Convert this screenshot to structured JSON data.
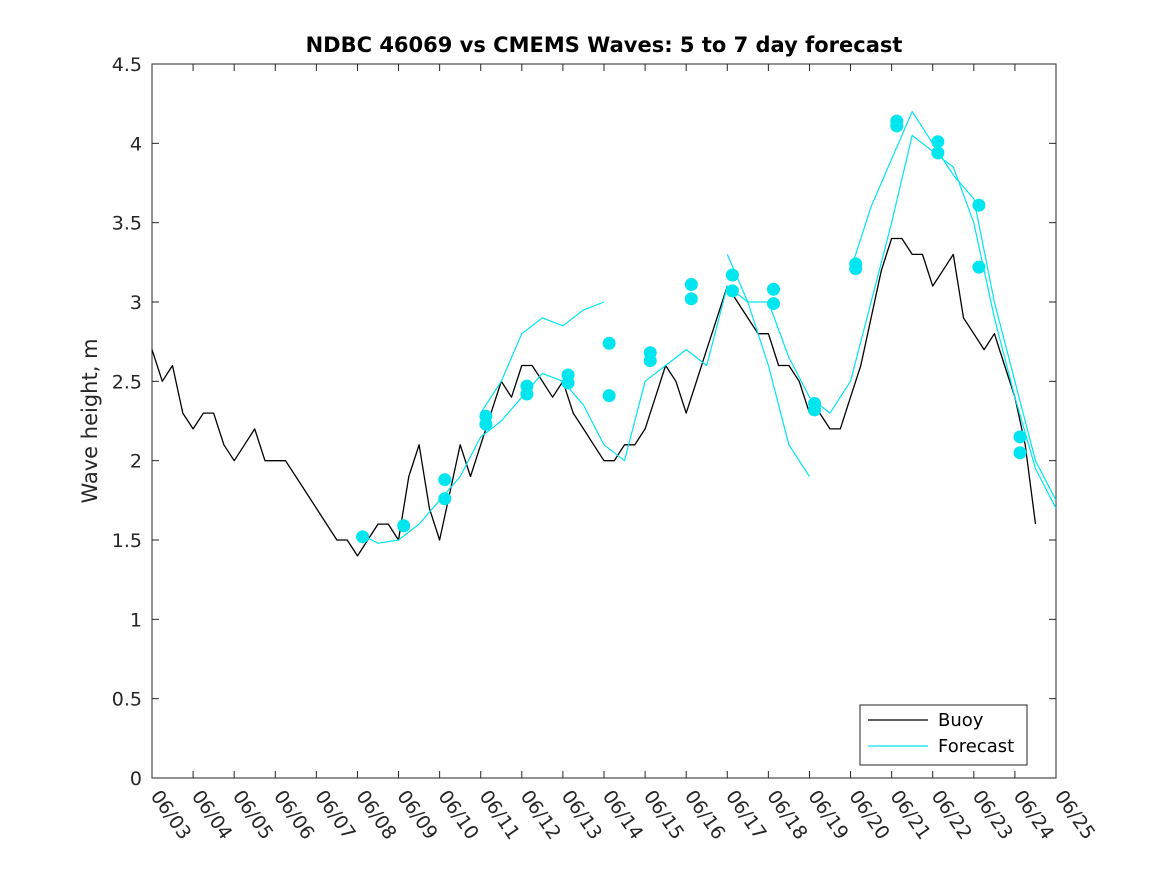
{
  "chart_data": {
    "type": "line",
    "title": "NDBC 46069 vs CMEMS Waves: 5 to 7 day forecast",
    "xlabel": "",
    "ylabel": "Wave height, m",
    "ylim": [
      0,
      4.5
    ],
    "yticks": [
      0,
      0.5,
      1,
      1.5,
      2,
      2.5,
      3,
      3.5,
      4,
      4.5
    ],
    "ytick_labels": [
      "0",
      "0.5",
      "1",
      "1.5",
      "2",
      "2.5",
      "3",
      "3.5",
      "4",
      "4.5"
    ],
    "xlim": [
      "06/03",
      "06/25"
    ],
    "xtick_labels": [
      "06/03",
      "06/04",
      "06/05",
      "06/06",
      "06/07",
      "06/08",
      "06/09",
      "06/10",
      "06/11",
      "06/12",
      "06/13",
      "06/14",
      "06/15",
      "06/16",
      "06/17",
      "06/18",
      "06/19",
      "06/20",
      "06/21",
      "06/22",
      "06/23",
      "06/24",
      "06/25"
    ],
    "grid": false,
    "legend_position": "bottom-right",
    "colors": {
      "buoy": "#000000",
      "forecast": "#00e5ee"
    },
    "series": [
      {
        "name": "Buoy",
        "color": "#000000",
        "x": [
          "06/03 00:00",
          "06/03 06:00",
          "06/03 12:00",
          "06/03 18:00",
          "06/04 00:00",
          "06/04 06:00",
          "06/04 12:00",
          "06/04 18:00",
          "06/05 00:00",
          "06/05 06:00",
          "06/05 12:00",
          "06/05 18:00",
          "06/06 00:00",
          "06/06 06:00",
          "06/06 12:00",
          "06/06 18:00",
          "06/07 00:00",
          "06/07 06:00",
          "06/07 12:00",
          "06/07 18:00",
          "06/08 00:00",
          "06/08 06:00",
          "06/08 12:00",
          "06/08 18:00",
          "06/09 00:00",
          "06/09 06:00",
          "06/09 12:00",
          "06/09 18:00",
          "06/10 00:00",
          "06/10 06:00",
          "06/10 12:00",
          "06/10 18:00",
          "06/11 00:00",
          "06/11 06:00",
          "06/11 12:00",
          "06/11 18:00",
          "06/12 00:00",
          "06/12 06:00",
          "06/12 12:00",
          "06/12 18:00",
          "06/13 00:00",
          "06/13 06:00",
          "06/13 12:00",
          "06/13 18:00",
          "06/14 00:00",
          "06/14 06:00",
          "06/14 12:00",
          "06/14 18:00",
          "06/15 00:00",
          "06/15 06:00",
          "06/15 12:00",
          "06/15 18:00",
          "06/16 00:00",
          "06/16 06:00",
          "06/16 12:00",
          "06/16 18:00",
          "06/17 00:00",
          "06/17 06:00",
          "06/17 12:00",
          "06/17 18:00",
          "06/18 00:00",
          "06/18 06:00",
          "06/18 12:00",
          "06/18 18:00",
          "06/19 00:00",
          "06/19 06:00",
          "06/19 12:00",
          "06/19 18:00",
          "06/20 00:00",
          "06/20 06:00",
          "06/20 12:00",
          "06/20 18:00",
          "06/21 00:00",
          "06/21 06:00",
          "06/21 12:00",
          "06/21 18:00",
          "06/22 00:00",
          "06/22 06:00",
          "06/22 12:00",
          "06/22 18:00",
          "06/23 00:00",
          "06/23 06:00",
          "06/23 12:00",
          "06/23 18:00",
          "06/24 00:00",
          "06/24 06:00",
          "06/24 12:00"
        ],
        "values": [
          2.7,
          2.5,
          2.6,
          2.3,
          2.2,
          2.3,
          2.3,
          2.1,
          2.0,
          2.1,
          2.2,
          2.0,
          2.0,
          2.0,
          1.9,
          1.8,
          1.7,
          1.6,
          1.5,
          1.5,
          1.4,
          1.5,
          1.6,
          1.6,
          1.5,
          1.9,
          2.1,
          1.7,
          1.5,
          1.8,
          2.1,
          1.9,
          2.1,
          2.3,
          2.5,
          2.4,
          2.6,
          2.6,
          2.5,
          2.4,
          2.5,
          2.3,
          2.2,
          2.1,
          2.0,
          2.0,
          2.1,
          2.1,
          2.2,
          2.4,
          2.6,
          2.5,
          2.3,
          2.5,
          2.7,
          2.9,
          3.1,
          3.0,
          2.9,
          2.8,
          2.8,
          2.6,
          2.6,
          2.5,
          2.3,
          2.3,
          2.2,
          2.2,
          2.4,
          2.6,
          2.9,
          3.2,
          3.4,
          3.4,
          3.3,
          3.3,
          3.1,
          3.2,
          3.3,
          2.9,
          2.8,
          2.7,
          2.8,
          2.6,
          2.4,
          2.1,
          1.6
        ]
      },
      {
        "name": "Forecast",
        "color": "#00e5ee",
        "x": [
          "06/08 03:00",
          "06/08 12:00",
          "06/09 00:00",
          "06/09 12:00",
          "06/10 00:00",
          "06/10 12:00",
          "06/11 00:00",
          "06/11 12:00",
          "06/12 00:00",
          "06/12 12:00",
          "06/13 00:00",
          "06/13 12:00",
          "06/14 00:00",
          "06/14 12:00",
          "06/15 00:00",
          "06/15 12:00",
          "06/16 00:00",
          "06/16 12:00",
          "06/17 00:00",
          "06/17 12:00",
          "06/18 00:00",
          "06/18 12:00",
          "06/19 00:00",
          "06/19 12:00",
          "06/20 00:00",
          "06/20 12:00",
          "06/21 00:00",
          "06/21 12:00",
          "06/22 00:00",
          "06/22 12:00",
          "06/23 00:00",
          "06/23 12:00",
          "06/24 00:00",
          "06/24 12:00",
          "06/25 00:00"
        ],
        "values": [
          1.53,
          1.48,
          1.5,
          1.6,
          1.75,
          1.9,
          2.15,
          2.25,
          2.4,
          2.55,
          2.5,
          2.35,
          2.1,
          2.0,
          2.5,
          2.6,
          2.7,
          2.6,
          3.1,
          3.0,
          3.0,
          2.65,
          2.4,
          2.3,
          2.5,
          3.0,
          3.5,
          4.05,
          3.95,
          3.85,
          3.5,
          2.9,
          2.4,
          1.95,
          1.7
        ]
      },
      {
        "name": "",
        "color": "#00e5ee",
        "x": [
          "06/11 00:00",
          "06/11 12:00",
          "06/12 00:00",
          "06/12 12:00",
          "06/13 00:00",
          "06/13 12:00",
          "06/14 00:00"
        ],
        "values": [
          2.3,
          2.5,
          2.8,
          2.9,
          2.85,
          2.95,
          3.0
        ]
      },
      {
        "name": "",
        "color": "#00e5ee",
        "x": [
          "06/17 00:00",
          "06/17 12:00",
          "06/18 00:00",
          "06/18 12:00",
          "06/19 00:00"
        ],
        "values": [
          3.3,
          3.0,
          2.6,
          2.1,
          1.9
        ]
      },
      {
        "name": "",
        "color": "#00e5ee",
        "x": [
          "06/20 00:00",
          "06/20 12:00",
          "06/21 00:00",
          "06/21 12:00",
          "06/22 00:00",
          "06/22 12:00",
          "06/23 00:00",
          "06/23 12:00",
          "06/24 00:00",
          "06/24 12:00",
          "06/25 00:00"
        ],
        "values": [
          3.2,
          3.6,
          3.9,
          4.2,
          4.0,
          3.8,
          3.65,
          3.0,
          2.5,
          2.0,
          1.75
        ]
      }
    ],
    "forecast_markers": {
      "x": [
        "06/08 03:00",
        "06/09 03:00",
        "06/10 03:00",
        "06/10 03:00",
        "06/11 03:00",
        "06/11 03:00",
        "06/12 03:00",
        "06/12 03:00",
        "06/13 03:00",
        "06/13 03:00",
        "06/14 03:00",
        "06/14 03:00",
        "06/15 03:00",
        "06/15 03:00",
        "06/16 03:00",
        "06/16 03:00",
        "06/17 03:00",
        "06/17 03:00",
        "06/18 03:00",
        "06/18 03:00",
        "06/19 03:00",
        "06/19 03:00",
        "06/20 03:00",
        "06/20 03:00",
        "06/21 03:00",
        "06/21 03:00",
        "06/22 03:00",
        "06/22 03:00",
        "06/23 03:00",
        "06/23 03:00",
        "06/24 03:00",
        "06/24 03:00"
      ],
      "values": [
        1.52,
        1.59,
        1.76,
        1.88,
        2.23,
        2.28,
        2.42,
        2.47,
        2.49,
        2.54,
        2.41,
        2.74,
        2.63,
        2.68,
        3.02,
        3.11,
        3.07,
        3.17,
        2.99,
        3.08,
        2.32,
        2.36,
        3.21,
        3.24,
        4.11,
        4.14,
        3.94,
        4.01,
        3.22,
        3.61,
        2.05,
        2.15
      ]
    },
    "legend": [
      "Buoy",
      "Forecast"
    ]
  }
}
